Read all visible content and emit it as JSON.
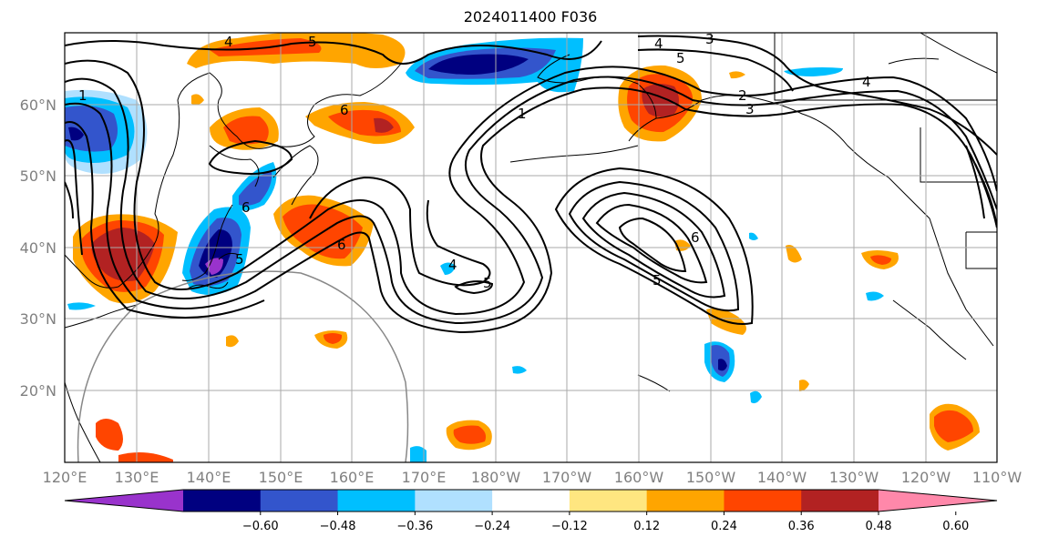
{
  "title": "2024011400 F036",
  "lat_labels": [
    "60°N",
    "50°N",
    "40°N",
    "30°N",
    "20°N"
  ],
  "lon_labels": [
    "120°E",
    "130°E",
    "140°E",
    "150°E",
    "160°E",
    "170°E",
    "180°W",
    "170°W",
    "160°W",
    "150°W",
    "140°W",
    "130°W",
    "120°W",
    "110°W"
  ],
  "colorbar": {
    "colors": [
      "#9933cc",
      "#000080",
      "#3355cc",
      "#00bfff",
      "#b0e0ff",
      "#ffffff",
      "#ffe680",
      "#ffa500",
      "#ff4500",
      "#b22222",
      "#ff88aa"
    ],
    "tick_labels": [
      "−0.60",
      "−0.48",
      "−0.36",
      "−0.24",
      "−0.12",
      "0.12",
      "0.24",
      "0.36",
      "0.48",
      "0.60"
    ]
  },
  "contour_labels": [
    "4",
    "5",
    "4",
    "3",
    "5",
    "4",
    "1",
    "1",
    "2",
    "3",
    "6",
    "6",
    "6",
    "5",
    "4",
    "5",
    "6",
    "5"
  ]
}
